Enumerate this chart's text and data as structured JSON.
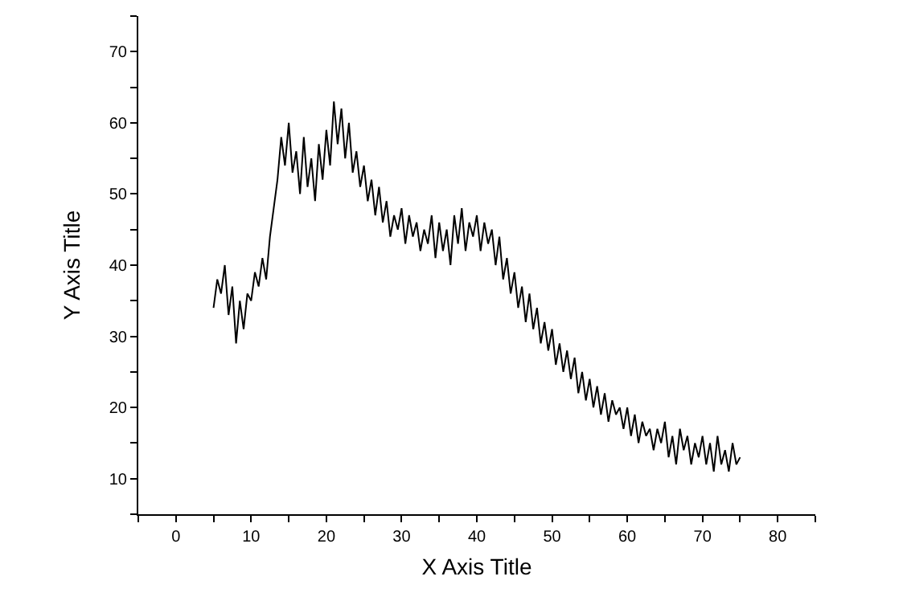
{
  "chart_data": {
    "type": "line",
    "xlabel": "X Axis Title",
    "ylabel": "Y Axis Title",
    "x": [
      5,
      5.5,
      6,
      6.5,
      7,
      7.5,
      8,
      8.5,
      9,
      9.5,
      10,
      10.5,
      11,
      11.5,
      12,
      12.5,
      13,
      13.5,
      14,
      14.5,
      15,
      15.5,
      16,
      16.5,
      17,
      17.5,
      18,
      18.5,
      19,
      19.5,
      20,
      20.5,
      21,
      21.5,
      22,
      22.5,
      23,
      23.5,
      24,
      24.5,
      25,
      25.5,
      26,
      26.5,
      27,
      27.5,
      28,
      28.5,
      29,
      29.5,
      30,
      30.5,
      31,
      31.5,
      32,
      32.5,
      33,
      33.5,
      34,
      34.5,
      35,
      35.5,
      36,
      36.5,
      37,
      37.5,
      38,
      38.5,
      39,
      39.5,
      40,
      40.5,
      41,
      41.5,
      42,
      42.5,
      43,
      43.5,
      44,
      44.5,
      45,
      45.5,
      46,
      46.5,
      47,
      47.5,
      48,
      48.5,
      49,
      49.5,
      50,
      50.5,
      51,
      51.5,
      52,
      52.5,
      53,
      53.5,
      54,
      54.5,
      55,
      55.5,
      56,
      56.5,
      57,
      57.5,
      58,
      58.5,
      59,
      59.5,
      60,
      60.5,
      61,
      61.5,
      62,
      62.5,
      63,
      63.5,
      64,
      64.5,
      65,
      65.5,
      66,
      66.5,
      67,
      67.5,
      68,
      68.5,
      69,
      69.5,
      70,
      70.5,
      71,
      71.5,
      72,
      72.5,
      73,
      73.5,
      74,
      74.5,
      75
    ],
    "series": [
      {
        "color": "#000000",
        "values": [
          34,
          38,
          36,
          40,
          33,
          37,
          29,
          35,
          31,
          36,
          35,
          39,
          37,
          41,
          38,
          44,
          48,
          52,
          58,
          54,
          60,
          53,
          56,
          50,
          58,
          51,
          55,
          49,
          57,
          52,
          59,
          54,
          63,
          57,
          62,
          55,
          60,
          53,
          56,
          51,
          54,
          49,
          52,
          47,
          51,
          46,
          49,
          44,
          47,
          45,
          48,
          43,
          47,
          44,
          46,
          42,
          45,
          43,
          47,
          41,
          46,
          42,
          45,
          40,
          47,
          43,
          48,
          42,
          46,
          44,
          47,
          42,
          46,
          43,
          45,
          40,
          44,
          38,
          41,
          36,
          39,
          34,
          37,
          32,
          36,
          31,
          34,
          29,
          32,
          28,
          31,
          26,
          29,
          25,
          28,
          24,
          27,
          22,
          25,
          21,
          24,
          20,
          23,
          19,
          22,
          18,
          21,
          19,
          20,
          17,
          20,
          16,
          19,
          15,
          18,
          16,
          17,
          14,
          17,
          15,
          18,
          13,
          16,
          12,
          17,
          14,
          16,
          12,
          15,
          13,
          16,
          12,
          15,
          11,
          16,
          12,
          14,
          11,
          15,
          12,
          13
        ]
      }
    ],
    "xlim": [
      -5,
      85
    ],
    "ylim": [
      5,
      75
    ],
    "xticks": [
      {
        "value": -5,
        "label": null
      },
      0,
      {
        "value": 5,
        "label": null
      },
      10,
      {
        "value": 15,
        "label": null
      },
      20,
      {
        "value": 25,
        "label": null
      },
      30,
      {
        "value": 35,
        "label": null
      },
      40,
      {
        "value": 45,
        "label": null
      },
      50,
      {
        "value": 55,
        "label": null
      },
      60,
      {
        "value": 65,
        "label": null
      },
      70,
      {
        "value": 75,
        "label": null
      },
      80,
      {
        "value": 85,
        "label": null
      }
    ],
    "yticks": [
      {
        "value": 5,
        "label": null
      },
      10,
      {
        "value": 15,
        "label": null
      },
      20,
      {
        "value": 25,
        "label": null
      },
      30,
      {
        "value": 35,
        "label": null
      },
      40,
      {
        "value": 45,
        "label": null
      },
      50,
      {
        "value": 55,
        "label": null
      },
      60,
      {
        "value": 65,
        "label": null
      },
      70,
      {
        "value": 75,
        "label": null
      }
    ],
    "marker": "none",
    "line_style": "solid"
  }
}
